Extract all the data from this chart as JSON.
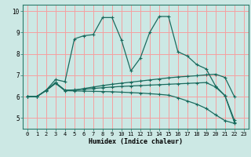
{
  "xlabel": "Humidex (Indice chaleur)",
  "bg_color": "#cce8e4",
  "grid_color": "#f5a0a0",
  "line_color": "#1a6b5e",
  "xlim": [
    -0.5,
    23.5
  ],
  "ylim": [
    4.5,
    10.3
  ],
  "xticks": [
    0,
    1,
    2,
    3,
    4,
    5,
    6,
    7,
    8,
    9,
    10,
    11,
    12,
    13,
    14,
    15,
    16,
    17,
    18,
    19,
    20,
    21,
    22,
    23
  ],
  "yticks": [
    5,
    6,
    7,
    8,
    9,
    10
  ],
  "series": [
    {
      "x": [
        0,
        1,
        2,
        3,
        4,
        5,
        6,
        7,
        8,
        9,
        10,
        11,
        12,
        13,
        14,
        15,
        16,
        17,
        18,
        19,
        20,
        21,
        22
      ],
      "y": [
        6.0,
        6.0,
        6.3,
        6.8,
        6.7,
        8.7,
        8.85,
        8.9,
        9.7,
        9.7,
        8.65,
        7.2,
        7.8,
        9.0,
        9.75,
        9.75,
        8.1,
        7.9,
        7.5,
        7.3,
        6.5,
        6.05,
        4.8
      ]
    },
    {
      "x": [
        0,
        1,
        2,
        3,
        4,
        5,
        6,
        7,
        8,
        9,
        10,
        11,
        12,
        13,
        14,
        15,
        16,
        17,
        18,
        19,
        20,
        21,
        22
      ],
      "y": [
        6.0,
        6.0,
        6.3,
        6.65,
        6.3,
        6.3,
        6.38,
        6.45,
        6.52,
        6.58,
        6.63,
        6.68,
        6.73,
        6.78,
        6.83,
        6.88,
        6.92,
        6.95,
        6.98,
        7.02,
        7.05,
        6.9,
        6.0
      ]
    },
    {
      "x": [
        0,
        1,
        2,
        3,
        4,
        5,
        6,
        7,
        8,
        9,
        10,
        11,
        12,
        13,
        14,
        15,
        16,
        17,
        18,
        19,
        20,
        21,
        22
      ],
      "y": [
        6.0,
        6.0,
        6.3,
        6.65,
        6.3,
        6.32,
        6.35,
        6.38,
        6.42,
        6.45,
        6.48,
        6.5,
        6.52,
        6.54,
        6.56,
        6.58,
        6.6,
        6.62,
        6.64,
        6.66,
        6.45,
        6.05,
        4.9
      ]
    },
    {
      "x": [
        0,
        1,
        2,
        3,
        4,
        5,
        6,
        7,
        8,
        9,
        10,
        11,
        12,
        13,
        14,
        15,
        16,
        17,
        18,
        19,
        20,
        21,
        22
      ],
      "y": [
        6.0,
        6.0,
        6.28,
        6.62,
        6.28,
        6.27,
        6.26,
        6.25,
        6.24,
        6.23,
        6.21,
        6.19,
        6.17,
        6.14,
        6.11,
        6.07,
        5.95,
        5.8,
        5.65,
        5.45,
        5.15,
        4.88,
        4.75
      ]
    }
  ]
}
